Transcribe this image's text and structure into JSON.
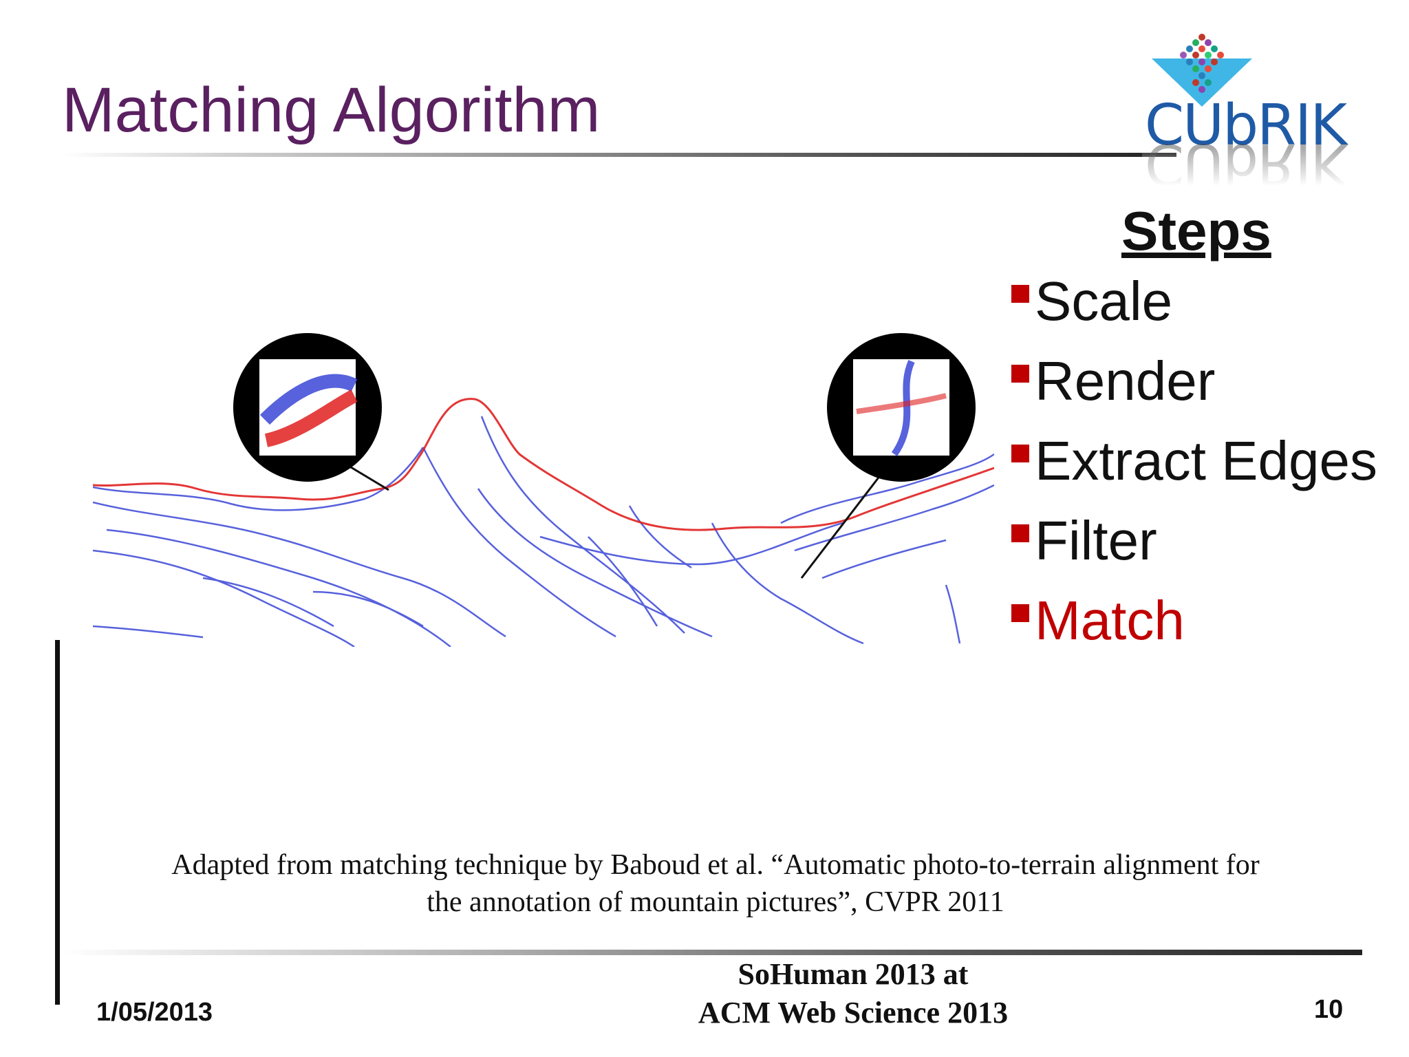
{
  "slide": {
    "title": "Matching Algorithm",
    "logo": {
      "text": "CUbRIK",
      "icon": "cubrik-cube-logo-icon"
    },
    "steps": {
      "heading": "Steps",
      "items": [
        {
          "label": "Scale",
          "active": false
        },
        {
          "label": "Render",
          "active": false
        },
        {
          "label": "Extract Edges",
          "active": false
        },
        {
          "label": "Filter",
          "active": false
        },
        {
          "label": "Match",
          "active": true
        }
      ],
      "bullet_color": "#c00000",
      "active_color": "#c00000"
    },
    "figure": {
      "description_icon": "mountain-edge-matching-icon",
      "colors": {
        "photo_edges": "#3a46d6",
        "terrain_silhouette": "#e02020"
      }
    },
    "citation": {
      "line1": "Adapted from matching technique by Baboud et al. “Automatic photo-to-terrain alignment for",
      "line2": "the annotation of mountain pictures”, CVPR 2011"
    },
    "footer": {
      "date": "1/05/2013",
      "event_line1": "SoHuman 2013 at",
      "event_line2": "ACM Web Science 2013",
      "page_number": "10"
    },
    "colors": {
      "title": "#5a2060",
      "logo_blue": "#1f5aa6",
      "logo_cyan": "#3fb6e6"
    }
  }
}
